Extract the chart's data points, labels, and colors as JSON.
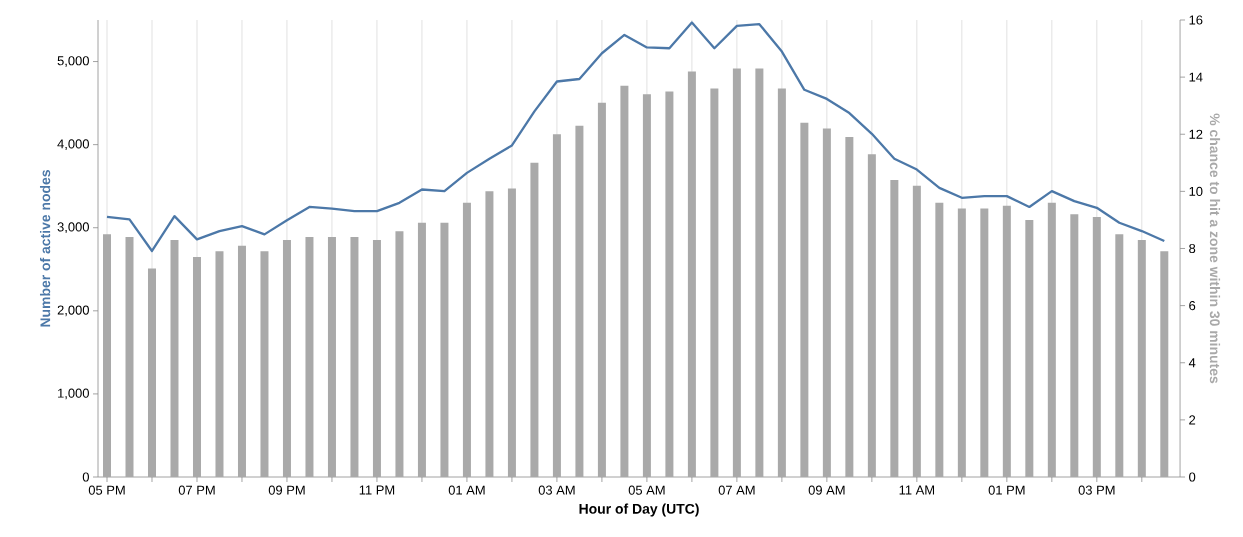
{
  "chart_data": {
    "type": "bar",
    "xlabel": "Hour of Day (UTC)",
    "ylabel": "Number of active nodes",
    "y2label": "% chance to hit a zone within 30 minutes",
    "categories": [
      "05 PM",
      null,
      null,
      null,
      "07 PM",
      null,
      null,
      null,
      "09 PM",
      null,
      null,
      null,
      "11 PM",
      null,
      null,
      null,
      "01 AM",
      null,
      null,
      null,
      "03 AM",
      null,
      null,
      null,
      "05 AM",
      null,
      null,
      null,
      "07 AM",
      null,
      null,
      null,
      "09 AM",
      null,
      null,
      null,
      "11 AM",
      null,
      null,
      null,
      "01 PM",
      null,
      null,
      null,
      "03 PM",
      null,
      null,
      null
    ],
    "ylim": [
      0,
      5500
    ],
    "yticks": [
      0,
      {
        "value": 1000,
        "label": "1,000"
      },
      {
        "value": 2000,
        "label": "2,000"
      },
      {
        "value": 3000,
        "label": "3,000"
      },
      {
        "value": 4000,
        "label": "4,000"
      },
      {
        "value": 5000,
        "label": "5,000"
      }
    ],
    "y2lim": [
      0,
      16
    ],
    "y2ticks": [
      0,
      2,
      4,
      6,
      8,
      10,
      12,
      14,
      16
    ],
    "grid": "x",
    "series": [
      {
        "axis": "y2",
        "color": "#a9a9a9",
        "values": [
          8.5,
          8.4,
          7.3,
          8.3,
          7.7,
          7.9,
          8.1,
          7.9,
          8.3,
          8.4,
          8.4,
          8.4,
          8.3,
          8.6,
          8.9,
          8.9,
          9.6,
          10.0,
          10.1,
          11.0,
          12.0,
          12.3,
          13.1,
          13.7,
          13.4,
          13.5,
          14.2,
          13.6,
          14.3,
          14.3,
          13.6,
          12.4,
          12.2,
          11.9,
          11.3,
          10.4,
          10.2,
          9.6,
          9.4,
          9.4,
          9.5,
          9.0,
          9.6,
          9.2,
          9.1,
          8.5,
          8.3,
          7.9
        ]
      },
      {
        "type": "line",
        "axis": "y",
        "color": "#4c78a8",
        "values": [
          3130,
          3100,
          2720,
          3140,
          2860,
          2960,
          3020,
          2920,
          3090,
          3250,
          3230,
          3200,
          3200,
          3300,
          3460,
          3440,
          3660,
          3830,
          3990,
          4400,
          4760,
          4790,
          5100,
          5320,
          5170,
          5160,
          5470,
          5160,
          5430,
          5450,
          5120,
          4660,
          4550,
          4380,
          4130,
          3830,
          3700,
          3480,
          3360,
          3380,
          3380,
          3250,
          3440,
          3320,
          3240,
          3060,
          2960,
          2840
        ]
      }
    ]
  }
}
